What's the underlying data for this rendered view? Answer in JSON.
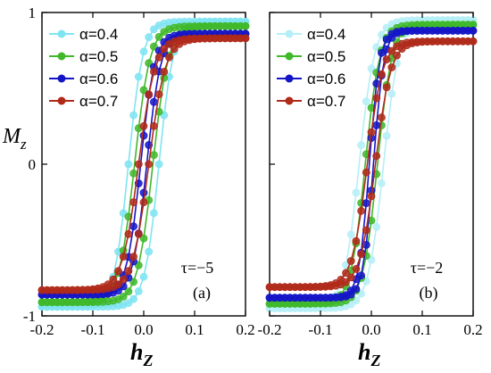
{
  "chart_data": [
    {
      "type": "line",
      "panel_label": "(a)",
      "annotation": "τ=−5",
      "xlabel": "h",
      "xlabel_sub": "Z",
      "ylabel": "M",
      "ylabel_sub": "z",
      "xlim": [
        -0.2,
        0.2
      ],
      "ylim": [
        -1,
        1
      ],
      "xticks": [
        "-0.2",
        "-0.1",
        "0.0",
        "0.1",
        "0.2"
      ],
      "xtick_values": [
        -0.2,
        -0.1,
        0.0,
        0.1,
        0.2
      ],
      "yticks": [
        "1",
        "0",
        "-1"
      ],
      "ytick_values": [
        1,
        0,
        -1
      ],
      "legend_position": "top-left",
      "series": [
        {
          "name": "α=0.4",
          "color": "#7fe4f2",
          "H": 0.03,
          "M": 0.94,
          "w": 0.028,
          "M_low": 0.94,
          "M_high": 0.94
        },
        {
          "name": "α=0.5",
          "color": "#3fb82a",
          "H": 0.018,
          "M": 0.91,
          "w": 0.03,
          "M_low": 0.91,
          "M_high": 0.91
        },
        {
          "name": "α=0.6",
          "color": "#1515c8",
          "H": 0.006,
          "M": 0.86,
          "w": 0.027,
          "M_low": 0.86,
          "M_high": 0.86
        },
        {
          "name": "α=0.7",
          "color": "#b02a1a",
          "H": 0.01,
          "M": 0.83,
          "w": 0.032,
          "M_low": 0.83,
          "M_high": 0.83
        }
      ]
    },
    {
      "type": "line",
      "panel_label": "(b)",
      "annotation": "τ=−2",
      "xlabel": "h",
      "xlabel_sub": "Z",
      "ylabel": "",
      "ylabel_sub": "",
      "xlim": [
        -0.2,
        0.2
      ],
      "ylim": [
        -1,
        1
      ],
      "xticks": [
        "-0.2",
        "-0.1",
        "0.0",
        "0.1",
        "0.2"
      ],
      "xtick_values": [
        -0.2,
        -0.1,
        0.0,
        0.1,
        0.2
      ],
      "yticks": [],
      "ytick_values": [],
      "legend_position": "top-left",
      "series": [
        {
          "name": "α=0.4",
          "color": "#b5eef7",
          "H": 0.024,
          "M": 0.95,
          "w": 0.03,
          "M_low": 0.95,
          "M_high": 0.95
        },
        {
          "name": "α=0.5",
          "color": "#3fb82a",
          "H": 0.012,
          "M": 0.92,
          "w": 0.028,
          "M_low": 0.92,
          "M_high": 0.92
        },
        {
          "name": "α=0.6",
          "color": "#1515c8",
          "H": 0.004,
          "M": 0.88,
          "w": 0.02,
          "M_low": 0.88,
          "M_high": 0.88
        },
        {
          "name": "α=0.7",
          "color": "#b02a1a",
          "H": 0.008,
          "M": 0.81,
          "w": 0.03,
          "M_low": 0.81,
          "M_high": 0.81
        }
      ]
    }
  ]
}
